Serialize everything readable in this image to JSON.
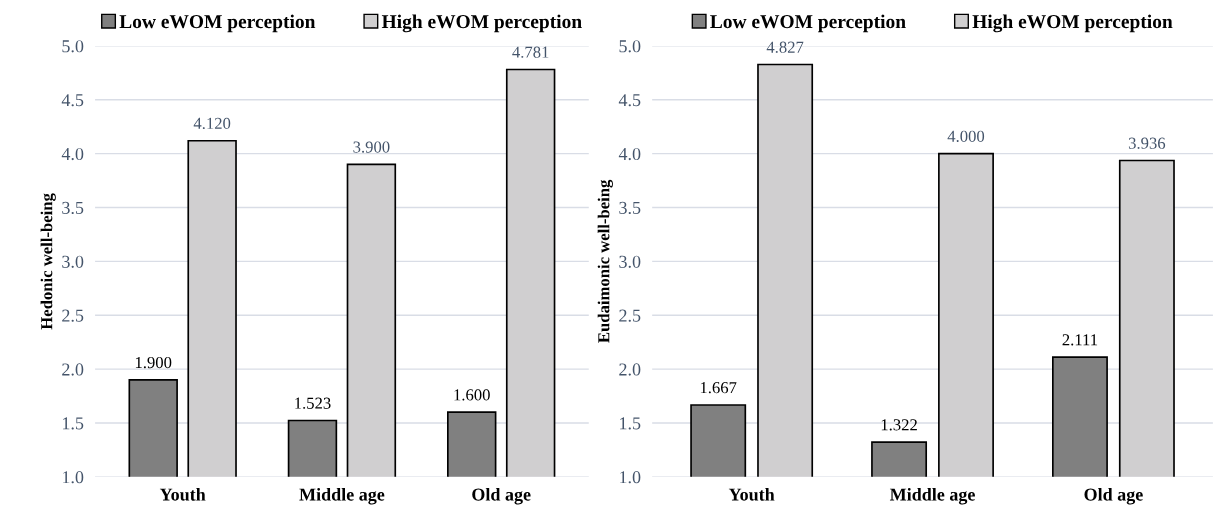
{
  "chart_data": [
    {
      "type": "bar",
      "ylabel": "Hedonic well-being",
      "categories": [
        "Youth",
        "Middle age",
        "Old age"
      ],
      "series": [
        {
          "name": "Low eWOM perception",
          "color": "#808080",
          "values": [
            1.9,
            1.523,
            1.6
          ],
          "value_labels": [
            "1.900",
            "1.523",
            "1.600"
          ]
        },
        {
          "name": "High eWOM perception",
          "color": "#d0cfd0",
          "values": [
            4.12,
            3.9,
            4.781
          ],
          "value_labels": [
            "4.120",
            "3.900",
            "4.781"
          ]
        }
      ],
      "ylim": [
        1.0,
        5.0
      ],
      "yticks": [
        {
          "value": 1.0,
          "label": "1.0"
        },
        {
          "value": 1.5,
          "label": "1.5"
        },
        {
          "value": 2.0,
          "label": "2.0"
        },
        {
          "value": 2.5,
          "label": "2.5"
        },
        {
          "value": 3.0,
          "label": "3.0"
        },
        {
          "value": 3.5,
          "label": "3.5"
        },
        {
          "value": 4.0,
          "label": "4.0"
        },
        {
          "value": 4.5,
          "label": "4.5"
        },
        {
          "value": 5.0,
          "label": "5.0"
        }
      ],
      "grid": "y",
      "legend": "top"
    },
    {
      "type": "bar",
      "ylabel": "Eudaimonic well-being",
      "categories": [
        "Youth",
        "Middle age",
        "Old age"
      ],
      "series": [
        {
          "name": "Low eWOM perception",
          "color": "#808080",
          "values": [
            1.667,
            1.322,
            2.111
          ],
          "value_labels": [
            "1.667",
            "1.322",
            "2.111"
          ]
        },
        {
          "name": "High eWOM perception",
          "color": "#d0cfd0",
          "values": [
            4.827,
            4.0,
            3.936
          ],
          "value_labels": [
            "4.827",
            "4.000",
            "3.936"
          ]
        }
      ],
      "ylim": [
        1.0,
        5.0
      ],
      "yticks": [
        {
          "value": 1.0,
          "label": "1.0"
        },
        {
          "value": 1.5,
          "label": "1.5"
        },
        {
          "value": 2.0,
          "label": "2.0"
        },
        {
          "value": 2.5,
          "label": "2.5"
        },
        {
          "value": 3.0,
          "label": "3.0"
        },
        {
          "value": 3.5,
          "label": "3.5"
        },
        {
          "value": 4.0,
          "label": "4.0"
        },
        {
          "value": 4.5,
          "label": "4.5"
        },
        {
          "value": 5.0,
          "label": "5.0"
        }
      ],
      "grid": "y",
      "legend": "top"
    }
  ]
}
